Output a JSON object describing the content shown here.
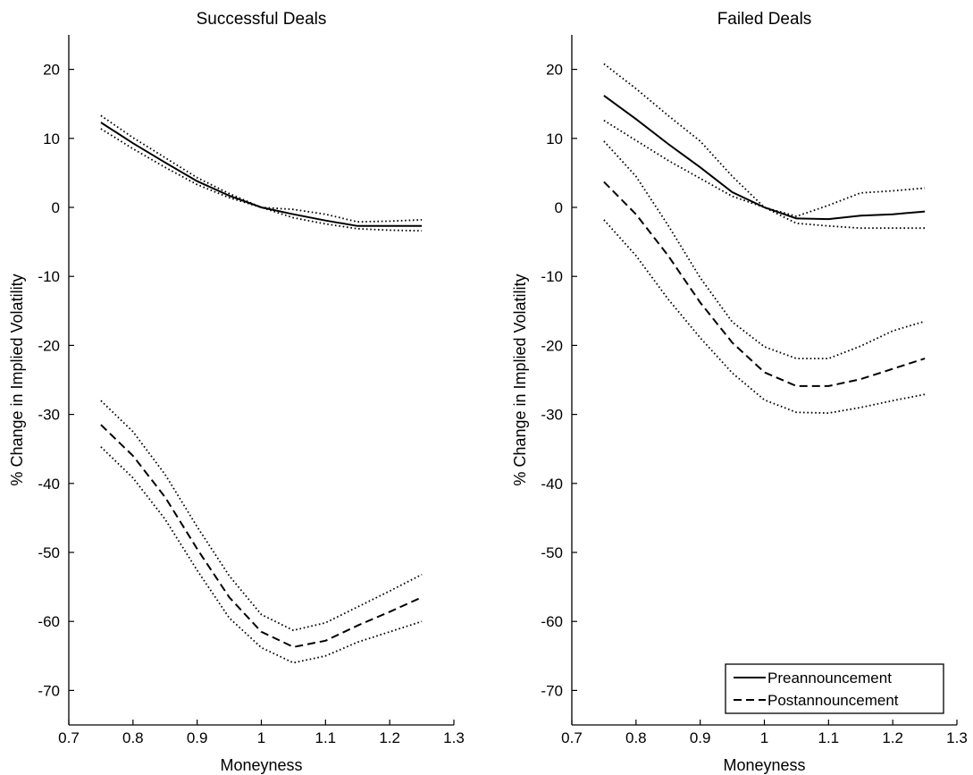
{
  "chart_data": [
    {
      "type": "line",
      "title": "Successful Deals",
      "xlabel": "Moneyness",
      "ylabel": "% Change in Implied Volatility",
      "xlim": [
        0.7,
        1.3
      ],
      "ylim": [
        -75,
        25
      ],
      "xticks": [
        "0.7",
        "0.8",
        "0.9",
        "1",
        "1.1",
        "1.2",
        "1.3"
      ],
      "yticks": [
        "20",
        "10",
        "0",
        "-10",
        "-20",
        "-30",
        "-40",
        "-50",
        "-60",
        "-70"
      ],
      "grid": false,
      "x": [
        0.75,
        0.8,
        0.85,
        0.9,
        0.95,
        1.0,
        1.05,
        1.1,
        1.15,
        1.2,
        1.25
      ],
      "series": [
        {
          "name": "Preannouncement",
          "style": "solid",
          "values": [
            12.3,
            9.3,
            6.5,
            3.8,
            1.7,
            0,
            -1.0,
            -1.9,
            -2.7,
            -2.7,
            -2.7
          ]
        },
        {
          "name": "",
          "style": "dotted",
          "values": [
            13.3,
            10.1,
            7.2,
            4.3,
            2.0,
            0,
            -0.3,
            -1.0,
            -2.1,
            -2.0,
            -1.8
          ]
        },
        {
          "name": "",
          "style": "dotted",
          "values": [
            11.4,
            8.5,
            5.8,
            3.3,
            1.4,
            0,
            -1.5,
            -2.4,
            -3.1,
            -3.3,
            -3.4
          ]
        },
        {
          "name": "Postannouncement",
          "style": "dashed",
          "values": [
            -31.5,
            -36.0,
            -42.0,
            -49.5,
            -56.5,
            -61.5,
            -63.7,
            -62.8,
            -60.6,
            -58.6,
            -56.5
          ]
        },
        {
          "name": "",
          "style": "dotted",
          "values": [
            -28.0,
            -32.5,
            -38.7,
            -46.3,
            -53.4,
            -59.0,
            -61.3,
            -60.2,
            -57.9,
            -55.6,
            -53.2
          ]
        },
        {
          "name": "",
          "style": "dotted",
          "values": [
            -34.7,
            -39.2,
            -45.2,
            -52.6,
            -59.5,
            -63.8,
            -66.0,
            -65.0,
            -63.0,
            -61.5,
            -60.0
          ]
        }
      ]
    },
    {
      "type": "line",
      "title": "Failed Deals",
      "xlabel": "Moneyness",
      "ylabel": "% Change in Implied Volatility",
      "xlim": [
        0.7,
        1.3
      ],
      "ylim": [
        -75,
        25
      ],
      "xticks": [
        "0.7",
        "0.8",
        "0.9",
        "1",
        "1.1",
        "1.2",
        "1.3"
      ],
      "yticks": [
        "20",
        "10",
        "0",
        "-10",
        "-20",
        "-30",
        "-40",
        "-50",
        "-60",
        "-70"
      ],
      "grid": false,
      "legend": "bottom-right",
      "x": [
        0.75,
        0.8,
        0.85,
        0.9,
        0.95,
        1.0,
        1.05,
        1.1,
        1.15,
        1.2,
        1.25
      ],
      "series": [
        {
          "name": "Preannouncement",
          "style": "solid",
          "values": [
            16.2,
            12.8,
            9.2,
            5.8,
            2.2,
            0,
            -1.6,
            -1.7,
            -1.2,
            -1.0,
            -0.6
          ]
        },
        {
          "name": "",
          "style": "dotted",
          "values": [
            20.8,
            17.2,
            13.3,
            9.6,
            4.5,
            0,
            -1.3,
            0.3,
            2.1,
            2.4,
            2.8
          ]
        },
        {
          "name": "",
          "style": "dotted",
          "values": [
            12.6,
            9.7,
            6.8,
            4.2,
            1.6,
            0,
            -2.3,
            -2.7,
            -3.0,
            -3.0,
            -3.0
          ]
        },
        {
          "name": "Postannouncement",
          "style": "dashed",
          "values": [
            3.7,
            -1.0,
            -7.0,
            -13.8,
            -19.6,
            -23.9,
            -25.9,
            -25.9,
            -24.9,
            -23.4,
            -21.9
          ]
        },
        {
          "name": "",
          "style": "dotted",
          "values": [
            9.6,
            4.5,
            -2.6,
            -10.2,
            -16.6,
            -20.2,
            -21.9,
            -21.9,
            -20.1,
            -17.9,
            -16.5
          ]
        },
        {
          "name": "",
          "style": "dotted",
          "values": [
            -1.8,
            -7.0,
            -13.3,
            -18.9,
            -24.0,
            -27.9,
            -29.7,
            -29.8,
            -29.0,
            -28.0,
            -27.1
          ]
        }
      ]
    }
  ]
}
